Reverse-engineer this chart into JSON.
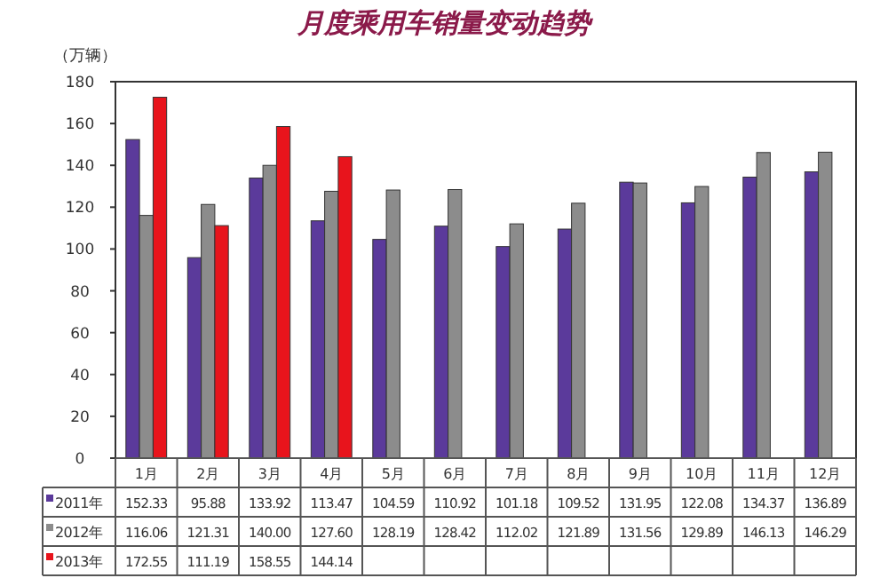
{
  "chart_data": {
    "type": "bar",
    "title": "月度乘用车销量变动趋势",
    "ylabel": "（万辆）",
    "categories": [
      "1月",
      "2月",
      "3月",
      "4月",
      "5月",
      "6月",
      "7月",
      "8月",
      "9月",
      "10月",
      "11月",
      "12月"
    ],
    "series": [
      {
        "name": "2011年",
        "color": "#5b3a9b",
        "values": [
          152.33,
          95.88,
          133.92,
          113.47,
          104.59,
          110.92,
          101.18,
          109.52,
          131.95,
          122.08,
          134.37,
          136.89
        ],
        "value_labels": [
          "152.33",
          "95.88",
          "133.92",
          "113.47",
          "104.59",
          "110.92",
          "101.18",
          "109.52",
          "131.95",
          "122.08",
          "134.37",
          "136.89"
        ]
      },
      {
        "name": "2012年",
        "color": "#8c8c8c",
        "values": [
          116.06,
          121.31,
          140.0,
          127.6,
          128.19,
          128.42,
          112.02,
          121.89,
          131.56,
          129.89,
          146.13,
          146.29
        ],
        "value_labels": [
          "116.06",
          "121.31",
          "140.00",
          "127.60",
          "128.19",
          "128.42",
          "112.02",
          "121.89",
          "131.56",
          "129.89",
          "146.13",
          "146.29"
        ]
      },
      {
        "name": "2013年",
        "color": "#e8141c",
        "values": [
          172.55,
          111.19,
          158.55,
          144.14,
          null,
          null,
          null,
          null,
          null,
          null,
          null,
          null
        ],
        "value_labels": [
          "172.55",
          "111.19",
          "158.55",
          "144.14",
          null,
          null,
          null,
          null,
          null,
          null,
          null,
          null
        ]
      }
    ],
    "ylim": [
      0,
      180
    ],
    "yticks": [
      0,
      20,
      40,
      60,
      80,
      100,
      120,
      140,
      160,
      180
    ],
    "grid": false,
    "legend": "bottom"
  }
}
